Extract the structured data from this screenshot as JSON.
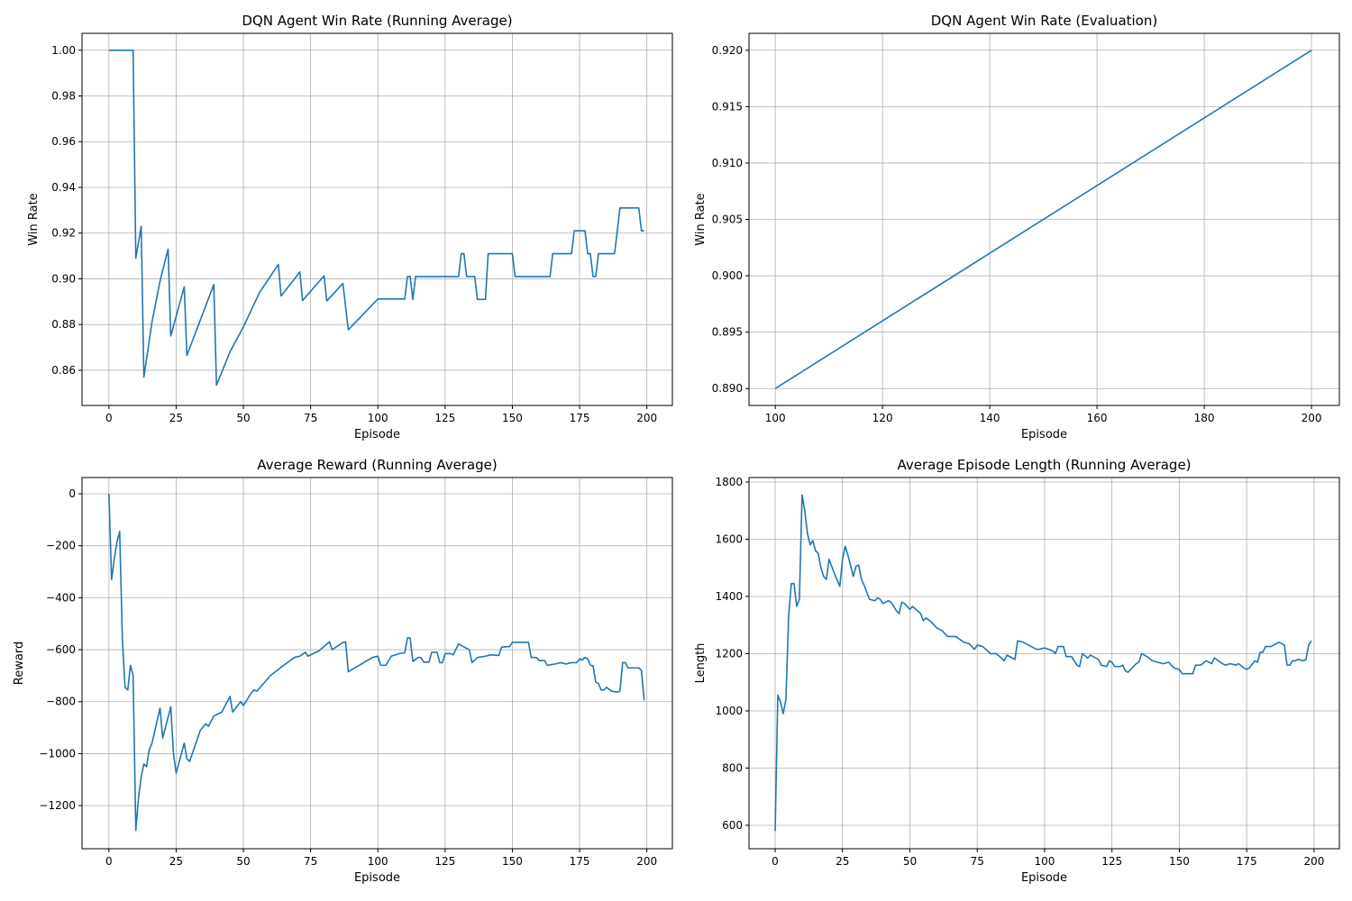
{
  "chart_data": [
    {
      "type": "line",
      "title": "DQN Agent Win Rate (Running Average)",
      "xlabel": "Episode",
      "ylabel": "Win Rate",
      "grid": true,
      "color": "#1f77b4",
      "xlim": [
        -10,
        209.5
      ],
      "ylim": [
        0.8446,
        1.0074
      ],
      "xticks": [
        0,
        25,
        50,
        75,
        100,
        125,
        150,
        175,
        200
      ],
      "yticks": [
        0.86,
        0.88,
        {
          "value": 0.9,
          "label": "0.90"
        },
        0.92,
        0.94,
        0.96,
        0.98,
        {
          "value": 1.0,
          "label": "1.00"
        }
      ],
      "x": [
        0,
        9,
        10,
        12,
        13,
        16,
        19,
        22,
        23,
        28,
        29,
        39,
        40,
        45,
        50,
        56,
        63,
        64,
        71,
        72,
        80,
        81,
        87,
        89,
        100,
        110,
        111,
        112,
        113,
        114,
        130,
        131,
        132,
        133,
        136,
        137,
        140,
        141,
        150,
        151,
        164,
        165,
        172,
        173,
        177,
        178,
        179,
        180,
        181,
        182,
        188,
        190,
        197,
        198,
        199
      ],
      "values": [
        1.0,
        1.0,
        0.909,
        0.923,
        0.857,
        0.881,
        0.899,
        0.913,
        0.875,
        0.8965,
        0.8665,
        0.8975,
        0.8535,
        0.868,
        0.879,
        0.894,
        0.9063,
        0.8925,
        0.903,
        0.8905,
        0.9013,
        0.8903,
        0.898,
        0.8777,
        0.8912,
        0.8912,
        0.901,
        0.901,
        0.891,
        0.901,
        0.901,
        0.911,
        0.911,
        0.901,
        0.901,
        0.891,
        0.891,
        0.911,
        0.911,
        0.901,
        0.901,
        0.911,
        0.911,
        0.921,
        0.921,
        0.911,
        0.911,
        0.901,
        0.901,
        0.911,
        0.911,
        0.931,
        0.931,
        0.921,
        0.921
      ]
    },
    {
      "type": "line",
      "title": "DQN Agent Win Rate (Evaluation)",
      "xlabel": "Episode",
      "ylabel": "Win Rate",
      "grid": true,
      "color": "#1f77b4",
      "xlim": [
        95.1,
        205.2
      ],
      "ylim": [
        0.8885,
        0.9215
      ],
      "xticks": [
        100,
        120,
        140,
        160,
        180,
        200
      ],
      "yticks": [
        {
          "value": 0.89,
          "label": "0.890"
        },
        0.895,
        {
          "value": 0.9,
          "label": "0.900"
        },
        0.905,
        {
          "value": 0.91,
          "label": "0.910"
        },
        0.915,
        {
          "value": 0.92,
          "label": "0.920"
        }
      ],
      "x": [
        100,
        200
      ],
      "values": [
        0.89,
        0.92
      ]
    },
    {
      "type": "line",
      "title": "Average Reward (Running Average)",
      "xlabel": "Episode",
      "ylabel": "Reward",
      "grid": true,
      "color": "#1f77b4",
      "xlim": [
        -10,
        209.5
      ],
      "ylim": [
        -1366,
        62.4
      ],
      "xticks": [
        0,
        25,
        50,
        75,
        100,
        125,
        150,
        175,
        200
      ],
      "yticks": [
        {
          "value": -1200,
          "label": "−1200"
        },
        {
          "value": -1000,
          "label": "−1000"
        },
        {
          "value": -800,
          "label": "−800"
        },
        {
          "value": -600,
          "label": "−600"
        },
        {
          "value": -400,
          "label": "−400"
        },
        {
          "value": -200,
          "label": "−200"
        },
        0
      ],
      "x": [
        0,
        1,
        2,
        3,
        4,
        5,
        6,
        7,
        8,
        9,
        10,
        11,
        12,
        13,
        14,
        15,
        16,
        18,
        19,
        20,
        23,
        24,
        25,
        28,
        29,
        30,
        34,
        36,
        37,
        39,
        42,
        45,
        46,
        49,
        50,
        53,
        54,
        55,
        60,
        65,
        69,
        71,
        73,
        74,
        78,
        82,
        83,
        87,
        88,
        89,
        98,
        100,
        101,
        103,
        105,
        108,
        110,
        111,
        112,
        113,
        115,
        116,
        117,
        119,
        120,
        122,
        123,
        124,
        125,
        127,
        128,
        130,
        133,
        134,
        135,
        137,
        140,
        142,
        145,
        146,
        149,
        150,
        156,
        157,
        159,
        160,
        162,
        163,
        166,
        168,
        170,
        172,
        174,
        175,
        176,
        177,
        178,
        179,
        180,
        181,
        182,
        183,
        184,
        185,
        187,
        189,
        190,
        191,
        192,
        193,
        197,
        198,
        199
      ],
      "values": [
        0,
        -330,
        -250,
        -185,
        -145,
        -560,
        -745,
        -755,
        -660,
        -700,
        -1295,
        -1170,
        -1090,
        -1040,
        -1050,
        -985,
        -960,
        -870,
        -825,
        -940,
        -820,
        -1000,
        -1075,
        -960,
        -1020,
        -1030,
        -910,
        -885,
        -895,
        -855,
        -840,
        -780,
        -840,
        -800,
        -815,
        -765,
        -755,
        -760,
        -700,
        -660,
        -630,
        -625,
        -610,
        -625,
        -605,
        -570,
        -600,
        -572,
        -570,
        -685,
        -630,
        -625,
        -660,
        -660,
        -625,
        -615,
        -612,
        -555,
        -555,
        -645,
        -630,
        -630,
        -648,
        -648,
        -610,
        -610,
        -650,
        -650,
        -615,
        -615,
        -620,
        -578,
        -595,
        -600,
        -650,
        -630,
        -625,
        -620,
        -622,
        -590,
        -588,
        -572,
        -572,
        -630,
        -630,
        -642,
        -642,
        -660,
        -655,
        -650,
        -655,
        -650,
        -650,
        -635,
        -640,
        -630,
        -635,
        -660,
        -662,
        -725,
        -730,
        -755,
        -755,
        -745,
        -760,
        -763,
        -760,
        -650,
        -650,
        -670,
        -670,
        -680,
        -795
      ]
    },
    {
      "type": "line",
      "title": "Average Episode Length (Running Average)",
      "xlabel": "Episode",
      "ylabel": "Length",
      "grid": true,
      "color": "#1f77b4",
      "xlim": [
        -9.7,
        209.4
      ],
      "ylim": [
        518,
        1815.7
      ],
      "xticks": [
        0,
        25,
        50,
        75,
        100,
        125,
        150,
        175,
        200
      ],
      "yticks": [
        600,
        800,
        1000,
        1200,
        1400,
        1600,
        1800
      ],
      "x": [
        0,
        1,
        2,
        3,
        4,
        5,
        6,
        7,
        8,
        9,
        10,
        11,
        12,
        13,
        14,
        15,
        16,
        17,
        18,
        19,
        20,
        22,
        24,
        25,
        26,
        27,
        29,
        30,
        31,
        32,
        33,
        35,
        37,
        38,
        39,
        40,
        42,
        43,
        45,
        46,
        47,
        48,
        50,
        51,
        54,
        55,
        56,
        58,
        60,
        62,
        64,
        67,
        70,
        72,
        74,
        75,
        77,
        80,
        82,
        84,
        85,
        86,
        88,
        89,
        90,
        92,
        95,
        97,
        98,
        100,
        103,
        104,
        105,
        107,
        108,
        110,
        112,
        113,
        114,
        116,
        117,
        120,
        121,
        123,
        124,
        125,
        126,
        128,
        129,
        130,
        131,
        134,
        135,
        136,
        138,
        140,
        142,
        144,
        146,
        148,
        150,
        151,
        155,
        156,
        158,
        160,
        162,
        163,
        166,
        167,
        169,
        171,
        172,
        174,
        175,
        176,
        178,
        179,
        180,
        181,
        182,
        184,
        186,
        187,
        189,
        190,
        191,
        192,
        193,
        194,
        196,
        197,
        198,
        199
      ],
      "values": [
        580,
        1055,
        1030,
        990,
        1040,
        1330,
        1445,
        1445,
        1365,
        1390,
        1755,
        1700,
        1620,
        1580,
        1595,
        1560,
        1550,
        1500,
        1470,
        1460,
        1530,
        1480,
        1435,
        1530,
        1575,
        1545,
        1470,
        1505,
        1510,
        1460,
        1440,
        1390,
        1385,
        1395,
        1390,
        1375,
        1385,
        1380,
        1350,
        1340,
        1380,
        1375,
        1355,
        1365,
        1340,
        1315,
        1325,
        1310,
        1290,
        1280,
        1260,
        1260,
        1240,
        1235,
        1215,
        1230,
        1225,
        1200,
        1200,
        1185,
        1175,
        1195,
        1185,
        1180,
        1245,
        1240,
        1225,
        1215,
        1215,
        1220,
        1210,
        1200,
        1225,
        1225,
        1190,
        1190,
        1160,
        1155,
        1200,
        1185,
        1195,
        1180,
        1160,
        1155,
        1175,
        1170,
        1155,
        1155,
        1160,
        1140,
        1135,
        1165,
        1170,
        1200,
        1190,
        1175,
        1170,
        1165,
        1170,
        1150,
        1145,
        1130,
        1130,
        1160,
        1160,
        1175,
        1165,
        1185,
        1165,
        1160,
        1165,
        1160,
        1165,
        1150,
        1145,
        1150,
        1175,
        1170,
        1205,
        1205,
        1225,
        1225,
        1235,
        1240,
        1230,
        1160,
        1160,
        1175,
        1175,
        1180,
        1175,
        1180,
        1230,
        1245
      ]
    }
  ]
}
